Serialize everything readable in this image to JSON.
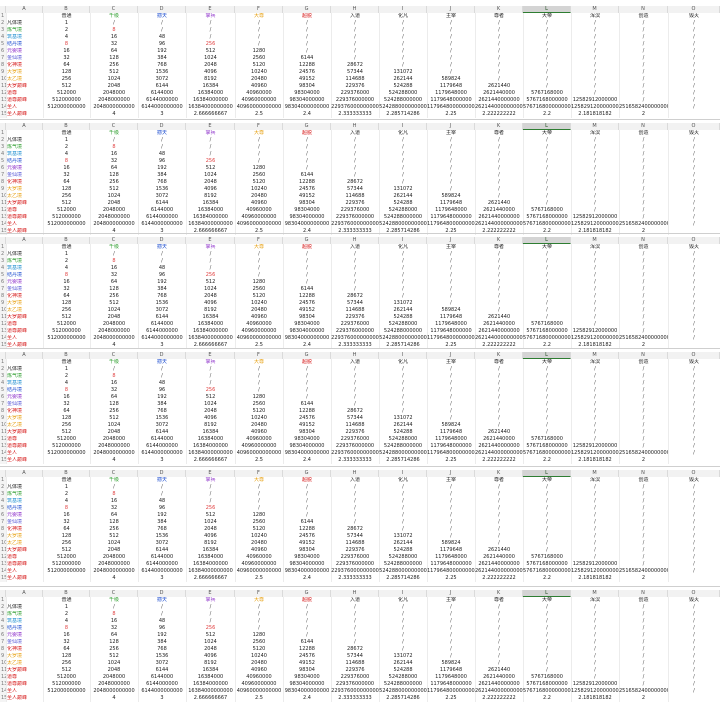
{
  "sheet": {
    "column_letters": [
      "A",
      "B",
      "C",
      "D",
      "E",
      "F",
      "G",
      "H",
      "I",
      "J",
      "K",
      "L",
      "M",
      "N",
      "O"
    ],
    "selected_column": "L",
    "header_row": [
      "",
      "普通",
      "千级",
      "撼天",
      "掌兵",
      "大尊",
      "超脱",
      "入道",
      "化凡",
      "主宰",
      "尊者",
      "大帝",
      "浑溟",
      "创造",
      "毁灭"
    ],
    "header_colors": [
      "#222222",
      "#222222",
      "#2e9e2e",
      "#1f4fd0",
      "#8a2bc8",
      "#e8a317",
      "#d61a1a",
      "#222222",
      "#222222",
      "#222222",
      "#222222",
      "#222222",
      "#222222",
      "#222222",
      "#222222"
    ],
    "row_labels": [
      "凡体境",
      "炼气境",
      "筑基境",
      "结丹境",
      "元婴境",
      "金仙境",
      "化神境",
      "大罗境",
      "太乙境",
      "大罗巅峰",
      "道尊",
      "道尊巅峰",
      "圣人",
      "圣人巅峰"
    ],
    "row_label_colors": [
      "#222222",
      "#2e9e2e",
      "#1f8fd0",
      "#1f4fd0",
      "#8a2bc8",
      "#5a5ad6",
      "#d61a1a",
      "#e8a317",
      "#e8a317",
      "#d61a1a",
      "#d61a1a",
      "#d61a1a",
      "#d61a1a",
      "#d61a1a"
    ],
    "rows": [
      [
        "1",
        "/",
        "/",
        "/",
        "/",
        "/",
        "/",
        "/",
        "/",
        "/",
        "/",
        "/",
        "/",
        "/"
      ],
      [
        "2",
        "8",
        "/",
        "/",
        "/",
        "/",
        "/",
        "/",
        "/",
        "/",
        "/",
        "/",
        "/",
        "/"
      ],
      [
        "4",
        "16",
        "48",
        "/",
        "/",
        "/",
        "/",
        "/",
        "/",
        "/",
        "/",
        "/",
        "/",
        "/"
      ],
      [
        "8",
        "32",
        "96",
        "256",
        "/",
        "/",
        "/",
        "/",
        "/",
        "/",
        "/",
        "/",
        "/",
        "/"
      ],
      [
        "16",
        "64",
        "192",
        "512",
        "1280",
        "/",
        "/",
        "/",
        "/",
        "/",
        "/",
        "/",
        "/",
        "/"
      ],
      [
        "32",
        "128",
        "384",
        "1024",
        "2560",
        "6144",
        "/",
        "/",
        "/",
        "/",
        "/",
        "/",
        "/",
        "/"
      ],
      [
        "64",
        "256",
        "768",
        "2048",
        "5120",
        "12288",
        "28672",
        "/",
        "/",
        "/",
        "/",
        "/",
        "/",
        "/"
      ],
      [
        "128",
        "512",
        "1536",
        "4096",
        "10240",
        "24576",
        "57344",
        "131072",
        "/",
        "/",
        "/",
        "/",
        "/",
        "/"
      ],
      [
        "256",
        "1024",
        "3072",
        "8192",
        "20480",
        "49152",
        "114688",
        "262144",
        "589824",
        "/",
        "/",
        "/",
        "/",
        "/"
      ],
      [
        "512",
        "2048",
        "6144",
        "16384",
        "40960",
        "98304",
        "229376",
        "524288",
        "1179648",
        "2621440",
        "/",
        "/",
        "/",
        "/"
      ],
      [
        "512000",
        "2048000",
        "6144000",
        "16384000",
        "40960000",
        "98304000",
        "229376000",
        "524288000",
        "1179648000",
        "2621440000",
        "5767168000",
        "/",
        "/",
        "/"
      ],
      [
        "512000000",
        "2048000000",
        "6144000000",
        "16384000000",
        "40960000000",
        "98304000000",
        "229376000000",
        "524288000000",
        "1179648000000",
        "2621440000000",
        "5767168000000",
        "12582912000000",
        "/",
        "/"
      ],
      [
        "512000000000",
        "2048000000000",
        "6144000000000",
        "16384000000000",
        "40960000000000",
        "98304000000000",
        "229376000000000",
        "524288000000000",
        "1179648000000000",
        "2621440000000000",
        "5767168000000000",
        "12582912000000000",
        "25165824000000000",
        "/"
      ],
      [
        "",
        "4",
        "3",
        "2.666666667",
        "2.5",
        "2.4",
        "2.333333333",
        "2.285714286",
        "2.25",
        "2.222222222",
        "2.2",
        "2.181818182",
        "2",
        ""
      ]
    ],
    "block_count": 6
  }
}
